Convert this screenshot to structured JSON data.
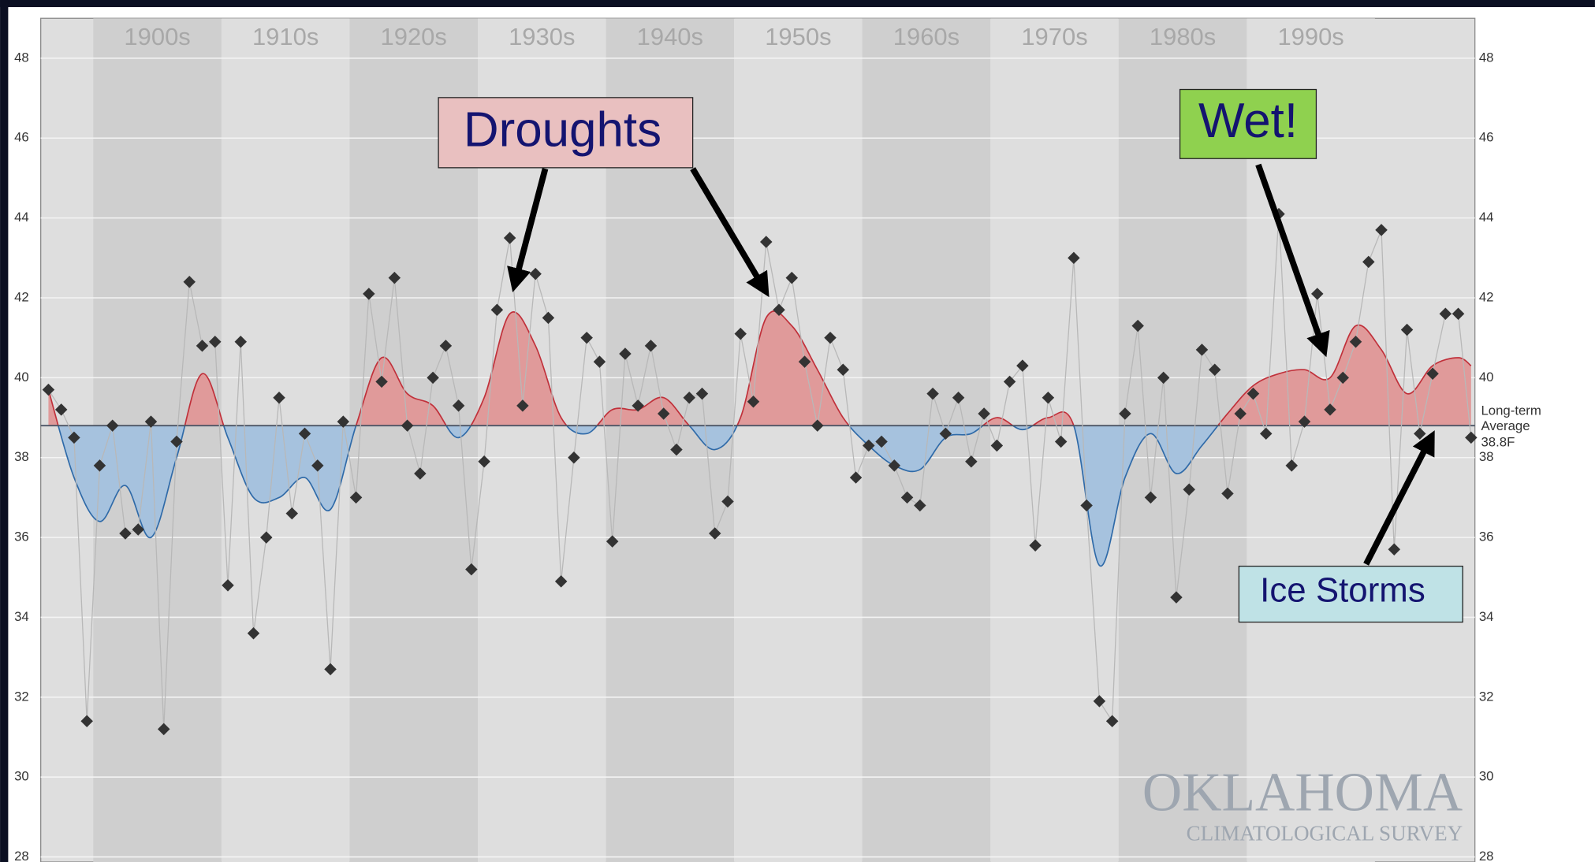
{
  "chart_data": {
    "type": "scatter",
    "x": [
      1896,
      1897,
      1898,
      1899,
      1900,
      1901,
      1902,
      1903,
      1904,
      1905,
      1906,
      1907,
      1908,
      1909,
      1910,
      1911,
      1912,
      1913,
      1914,
      1915,
      1916,
      1917,
      1918,
      1919,
      1920,
      1921,
      1922,
      1923,
      1924,
      1925,
      1926,
      1927,
      1928,
      1929,
      1930,
      1931,
      1932,
      1933,
      1934,
      1935,
      1936,
      1937,
      1938,
      1939,
      1940,
      1941,
      1942,
      1943,
      1944,
      1945,
      1946,
      1947,
      1948,
      1949,
      1950,
      1951,
      1952,
      1953,
      1954,
      1955,
      1956,
      1957,
      1958,
      1959,
      1960,
      1961,
      1962,
      1963,
      1964,
      1965,
      1966,
      1967,
      1968,
      1969,
      1970,
      1971,
      1972,
      1973,
      1974,
      1975,
      1976,
      1977,
      1978,
      1979,
      1980,
      1981,
      1982,
      1983,
      1984,
      1985,
      1986,
      1987,
      1988,
      1989,
      1990,
      1991,
      1992,
      1993,
      1994,
      1995,
      1996,
      1997,
      1998,
      1999,
      2000,
      2001,
      2002,
      2003,
      2004,
      2005,
      2006,
      2007
    ],
    "values": [
      39.7,
      39.2,
      38.5,
      31.4,
      37.8,
      38.8,
      36.1,
      36.2,
      38.9,
      31.2,
      38.4,
      42.4,
      40.8,
      40.9,
      34.8,
      40.9,
      33.6,
      36.0,
      39.5,
      36.6,
      38.6,
      37.8,
      32.7,
      38.9,
      37.0,
      42.1,
      39.9,
      42.5,
      38.8,
      37.6,
      40.0,
      40.8,
      39.3,
      35.2,
      37.9,
      41.7,
      43.5,
      39.3,
      42.6,
      41.5,
      34.9,
      38.0,
      41.0,
      40.4,
      35.9,
      40.6,
      39.3,
      40.8,
      39.1,
      38.2,
      39.5,
      39.6,
      36.1,
      36.9,
      41.1,
      39.4,
      43.4,
      41.7,
      42.5,
      40.4,
      38.8,
      41.0,
      40.2,
      37.5,
      38.3,
      38.4,
      37.8,
      37.0,
      36.8,
      39.6,
      38.6,
      39.5,
      37.9,
      39.1,
      38.3,
      39.9,
      40.3,
      35.8,
      39.5,
      38.4,
      43.0,
      36.8,
      31.9,
      31.4,
      39.1,
      41.3,
      37.0,
      40.0,
      34.5,
      37.2,
      40.7,
      40.2,
      37.1,
      39.1,
      39.6,
      38.6,
      44.1,
      37.8,
      38.9,
      42.1,
      39.2,
      40.0,
      40.9,
      42.9,
      43.7,
      35.7,
      41.2,
      38.6,
      40.1,
      41.6,
      41.6,
      38.5
    ],
    "color": "#333333",
    "line_color": "#b8b8b8",
    "smoothed": {
      "x": [
        1896,
        1898,
        1900,
        1902,
        1904,
        1906,
        1908,
        1910,
        1912,
        1914,
        1916,
        1918,
        1920,
        1922,
        1924,
        1926,
        1928,
        1930,
        1932,
        1934,
        1936,
        1938,
        1940,
        1942,
        1944,
        1946,
        1948,
        1950,
        1952,
        1954,
        1956,
        1958,
        1960,
        1962,
        1964,
        1966,
        1968,
        1970,
        1972,
        1974,
        1976,
        1978,
        1980,
        1982,
        1984,
        1986,
        1988,
        1990,
        1992,
        1994,
        1996,
        1998,
        2000,
        2002,
        2004,
        2006,
        2007
      ],
      "values": [
        39.7,
        37.5,
        36.4,
        37.3,
        36.0,
        38.0,
        40.1,
        38.5,
        37.0,
        37.0,
        37.5,
        36.7,
        38.8,
        40.5,
        39.6,
        39.3,
        38.5,
        39.5,
        41.6,
        40.8,
        39.0,
        38.6,
        39.2,
        39.2,
        39.5,
        38.8,
        38.2,
        39.0,
        41.5,
        41.3,
        40.2,
        39.0,
        38.3,
        37.8,
        37.7,
        38.5,
        38.6,
        39.0,
        38.7,
        39.0,
        38.8,
        35.3,
        37.5,
        38.6,
        37.6,
        38.3,
        39.1,
        39.8,
        40.1,
        40.2,
        40.0,
        41.3,
        40.7,
        39.6,
        40.3,
        40.5,
        40.3
      ],
      "above_color": "#e09a9a",
      "above_line": "#c0303a",
      "below_color": "#a6c2de",
      "below_line": "#2f6aa8"
    },
    "average": {
      "value": 38.8,
      "label": "38.8F"
    },
    "average_text": [
      "Long-term",
      "Average"
    ],
    "xlim": [
      1895.9,
      2007.8
    ],
    "xticks": [
      {
        "value": 1900,
        "label": "1900s"
      },
      {
        "value": 1910,
        "label": "1910s"
      },
      {
        "value": 1920,
        "label": "1920s"
      },
      {
        "value": 1930,
        "label": "1930s"
      },
      {
        "value": 1940,
        "label": "1940s"
      },
      {
        "value": 1950,
        "label": "1950s"
      },
      {
        "value": 1960,
        "label": "1960s"
      },
      {
        "value": 1970,
        "label": "1970s"
      },
      {
        "value": 1980,
        "label": "1980s"
      },
      {
        "value": 1990,
        "label": "1990s"
      }
    ],
    "ylim": [
      28,
      49
    ],
    "yticks": [
      28,
      30,
      32,
      34,
      36,
      38,
      40,
      42,
      44,
      46,
      48
    ],
    "grid": true,
    "annotations": [
      "Droughts",
      "Wet!",
      "Ice Storms"
    ],
    "watermark": [
      "OKLAHOMA",
      "CLIMATOLOGICAL SURVEY"
    ]
  }
}
